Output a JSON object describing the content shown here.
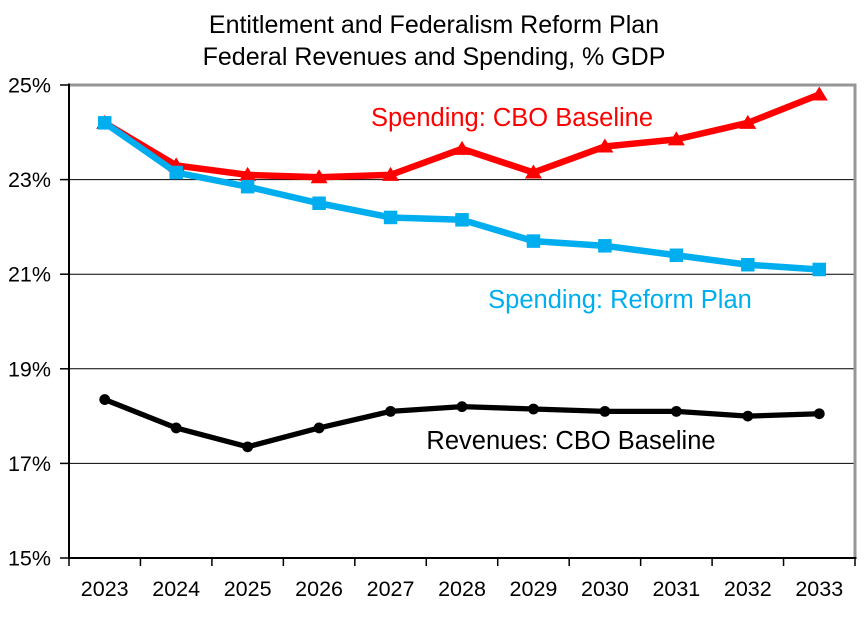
{
  "title": {
    "line1": "Entitlement and Federalism Reform Plan",
    "line2": "Federal Revenues and Spending, % GDP"
  },
  "chart_data": {
    "type": "line",
    "title": "Entitlement and Federalism Reform Plan — Federal Revenues and Spending, % GDP",
    "x_categories": [
      "2023",
      "2024",
      "2025",
      "2026",
      "2027",
      "2028",
      "2029",
      "2030",
      "2031",
      "2032",
      "2033"
    ],
    "xlabel": "",
    "ylabel": "",
    "ylim": [
      15,
      25
    ],
    "ytick_step": 2,
    "ytick_labels": [
      "15%",
      "17%",
      "19%",
      "21%",
      "23%",
      "25%"
    ],
    "grid": "horizontal-only",
    "legend": "inline-text-labels",
    "axis_color": "#000000",
    "frame_color": "#969696",
    "series": [
      {
        "name": "Spending: CBO Baseline",
        "color": "#FF0000",
        "marker": "triangle",
        "values": [
          24.2,
          23.3,
          23.1,
          23.05,
          23.1,
          23.65,
          23.15,
          23.7,
          23.85,
          24.2,
          24.8
        ]
      },
      {
        "name": "Spending: Reform Plan",
        "color": "#00AEEF",
        "marker": "square",
        "values": [
          24.2,
          23.15,
          22.85,
          22.5,
          22.2,
          22.15,
          21.7,
          21.6,
          21.4,
          21.2,
          21.1
        ]
      },
      {
        "name": "Revenues: CBO Baseline",
        "color": "#000000",
        "marker": "circle",
        "values": [
          18.35,
          17.75,
          17.35,
          17.75,
          18.1,
          18.2,
          18.15,
          18.1,
          18.1,
          18.0,
          18.05
        ]
      }
    ]
  }
}
